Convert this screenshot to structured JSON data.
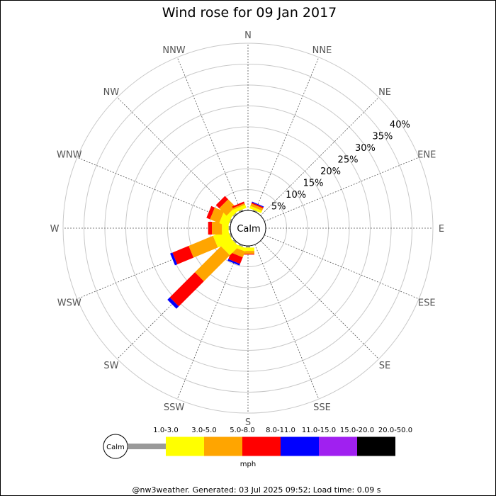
{
  "chart_data": {
    "type": "wind-rose",
    "title": "Wind rose for 09 Jan 2017",
    "directions": [
      "N",
      "NNE",
      "NE",
      "ENE",
      "E",
      "ESE",
      "SE",
      "SSE",
      "S",
      "SSW",
      "SW",
      "WSW",
      "W",
      "WNW",
      "NW",
      "NNW"
    ],
    "ring_labels": [
      "5%",
      "10%",
      "15%",
      "20%",
      "25%",
      "30%",
      "35%",
      "40%"
    ],
    "rmax_percent": 40,
    "calm_label": "Calm",
    "units": "mph",
    "bins": [
      {
        "label": "1.0-3.0",
        "color": "#999999"
      },
      {
        "label": "3.0-5.0",
        "color": "#ffff00"
      },
      {
        "label": "5.0-8.0",
        "color": "#ffa500"
      },
      {
        "label": "8.0-11.0",
        "color": "#ff0000"
      },
      {
        "label": "11.0-15.0",
        "color": "#0000ff"
      },
      {
        "label": "15.0-20.0",
        "color": "#a020f0"
      },
      {
        "label": "20.0-50.0",
        "color": "#000000"
      }
    ],
    "series": [
      {
        "direction": "N",
        "values": [
          0,
          0,
          0,
          0,
          0,
          0,
          0
        ]
      },
      {
        "direction": "NNE",
        "values": [
          0.3,
          0.6,
          0.6,
          0.3,
          0.2,
          0,
          0
        ]
      },
      {
        "direction": "NE",
        "values": [
          0,
          0,
          0,
          0,
          0,
          0,
          0
        ]
      },
      {
        "direction": "ENE",
        "values": [
          0,
          0,
          0,
          0,
          0,
          0,
          0
        ]
      },
      {
        "direction": "E",
        "values": [
          0,
          0,
          0,
          0,
          0,
          0,
          0
        ]
      },
      {
        "direction": "ESE",
        "values": [
          0,
          0,
          0,
          0,
          0,
          0,
          0
        ]
      },
      {
        "direction": "SE",
        "values": [
          0,
          0,
          0,
          0,
          0,
          0,
          0
        ]
      },
      {
        "direction": "SSE",
        "values": [
          0,
          0,
          0,
          0,
          0,
          0,
          0
        ]
      },
      {
        "direction": "S",
        "values": [
          0.4,
          0.8,
          0.7,
          0.2,
          0,
          0,
          0
        ]
      },
      {
        "direction": "SSW",
        "values": [
          0.4,
          0.8,
          1.5,
          1.7,
          0.4,
          0,
          0
        ]
      },
      {
        "direction": "SW",
        "values": [
          0.4,
          3.0,
          8.8,
          8.5,
          0.8,
          0,
          0
        ]
      },
      {
        "direction": "WSW",
        "values": [
          0.4,
          3.8,
          6.3,
          4.2,
          0.6,
          0,
          0
        ]
      },
      {
        "direction": "W",
        "values": [
          0.4,
          1.6,
          2.4,
          0.9,
          0,
          0,
          0
        ]
      },
      {
        "direction": "WNW",
        "values": [
          0.4,
          2.2,
          2.4,
          0.9,
          0,
          0,
          0
        ]
      },
      {
        "direction": "NW",
        "values": [
          0.4,
          1.1,
          2.5,
          1.1,
          0,
          0,
          0
        ]
      },
      {
        "direction": "NNW",
        "values": [
          0.4,
          0.8,
          0.4,
          0.4,
          0,
          0,
          0
        ]
      }
    ]
  },
  "footer": "@nw3weather. Generated: 03 Jul 2025 09:52; Load time: 0.09 s"
}
